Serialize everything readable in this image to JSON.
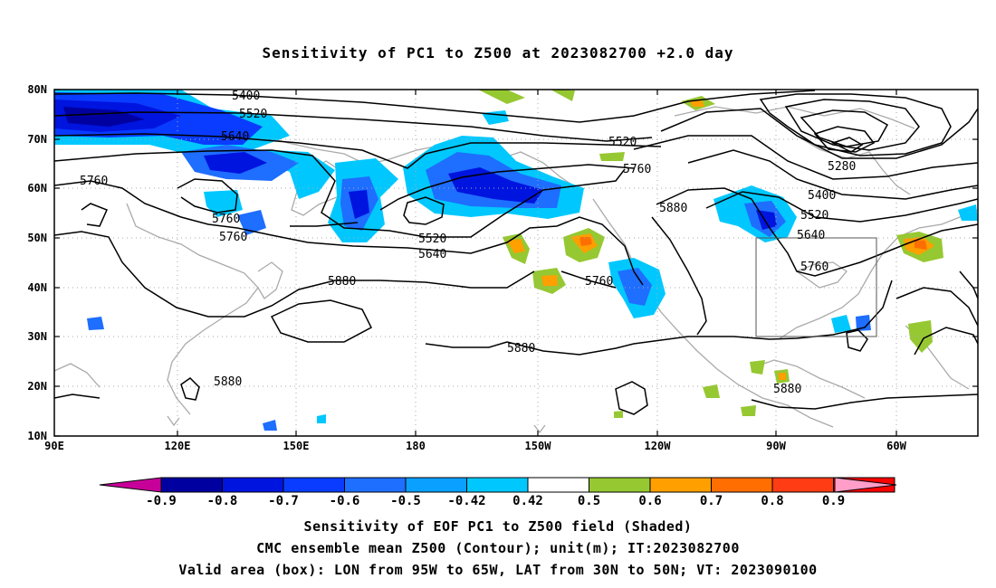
{
  "title": "Sensitivity of PC1 to Z500 at 2023082700 +2.0 day",
  "lat_labels": [
    "80N",
    "70N",
    "60N",
    "50N",
    "40N",
    "30N",
    "20N",
    "10N"
  ],
  "lon_labels": [
    "90E",
    "120E",
    "150E",
    "180",
    "150W",
    "120W",
    "90W",
    "60W"
  ],
  "contour_labels": [
    "5400",
    "5520",
    "5640",
    "5760",
    "5760",
    "5760",
    "5520",
    "5640",
    "5880",
    "5520",
    "5760",
    "5880",
    "5760",
    "5880",
    "5880",
    "5280",
    "5400",
    "5520",
    "5640",
    "5760",
    "5880"
  ],
  "colorbar": {
    "labels": [
      "-0.9",
      "-0.8",
      "-0.7",
      "-0.6",
      "-0.5",
      "-0.42",
      "0.42",
      "0.5",
      "0.6",
      "0.7",
      "0.8",
      "0.9"
    ],
    "colors": [
      "#0000a0",
      "#0014e0",
      "#0a3cff",
      "#1e6eff",
      "#0aa0ff",
      "#00c8ff",
      "#ffffff",
      "#96c832",
      "#ff9f00",
      "#ff6e00",
      "#ff3c14",
      "#ff0000"
    ],
    "low_end_color": "#c8009a",
    "high_end_color": "#ff9ec8"
  },
  "valid_box": {
    "lon_from": "95W",
    "lon_to": "65W",
    "lat_from": "30N",
    "lat_to": "50N"
  },
  "caption": {
    "line1": "Sensitivity of EOF PC1 to Z500 field (Shaded)",
    "line2": "CMC ensemble mean Z500 (Contour); unit(m); IT:2023082700",
    "line3": "Valid area (box): LON from 95W to 65W, LAT from 30N to 50N; VT: 2023090100"
  }
}
